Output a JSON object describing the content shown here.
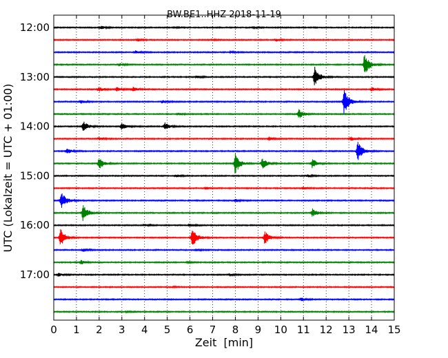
{
  "chart_data": {
    "type": "line",
    "title": "BW.BE1..HHZ 2018-11-19",
    "xlabel": "Zeit  [min]",
    "ylabel": "UTC (Lokalzeit = UTC + 01:00)",
    "xlim": [
      0,
      15
    ],
    "x_ticks": [
      "0",
      "1",
      "2",
      "3",
      "4",
      "5",
      "6",
      "7",
      "8",
      "9",
      "10",
      "11",
      "12",
      "13",
      "14",
      "15"
    ],
    "y_ticks": [
      "12:00",
      "13:00",
      "14:00",
      "15:00",
      "16:00",
      "17:00"
    ],
    "grid": "vertical dotted",
    "trace_colors": [
      "#000000",
      "#ff0000",
      "#0000ff",
      "#008000"
    ],
    "series": [
      {
        "start": "12:00",
        "events": [
          {
            "x": 2.1,
            "amp": 0.12
          },
          {
            "x": 5.3,
            "amp": 0.05
          },
          {
            "x": 8.8,
            "amp": 0.05
          }
        ]
      },
      {
        "start": "12:15",
        "events": [
          {
            "x": 3.7,
            "amp": 0.1
          },
          {
            "x": 7.0,
            "amp": 0.06
          },
          {
            "x": 9.8,
            "amp": 0.1
          }
        ]
      },
      {
        "start": "12:30",
        "events": [
          {
            "x": 3.6,
            "amp": 0.12
          },
          {
            "x": 7.8,
            "amp": 0.05
          }
        ]
      },
      {
        "start": "12:45",
        "events": [
          {
            "x": 2.9,
            "amp": 0.1
          },
          {
            "x": 13.7,
            "amp": 0.95
          }
        ]
      },
      {
        "start": "13:00",
        "events": [
          {
            "x": 6.3,
            "amp": 0.08
          },
          {
            "x": 11.5,
            "amp": 0.9
          }
        ]
      },
      {
        "start": "13:15",
        "events": [
          {
            "x": 2.0,
            "amp": 0.2
          },
          {
            "x": 2.8,
            "amp": 0.18
          },
          {
            "x": 3.5,
            "amp": 0.18
          },
          {
            "x": 14.0,
            "amp": 0.15
          }
        ]
      },
      {
        "start": "13:30",
        "events": [
          {
            "x": 1.2,
            "amp": 0.15
          },
          {
            "x": 4.8,
            "amp": 0.1
          },
          {
            "x": 12.8,
            "amp": 1.15
          }
        ]
      },
      {
        "start": "13:45",
        "events": [
          {
            "x": 5.5,
            "amp": 0.08
          },
          {
            "x": 10.8,
            "amp": 0.4
          }
        ]
      },
      {
        "start": "14:00",
        "events": [
          {
            "x": 1.3,
            "amp": 0.45
          },
          {
            "x": 3.0,
            "amp": 0.3
          },
          {
            "x": 4.9,
            "amp": 0.3
          }
        ]
      },
      {
        "start": "14:15",
        "events": [
          {
            "x": 2.0,
            "amp": 0.1
          },
          {
            "x": 9.5,
            "amp": 0.15
          },
          {
            "x": 13.1,
            "amp": 0.15
          }
        ]
      },
      {
        "start": "14:30",
        "events": [
          {
            "x": 0.6,
            "amp": 0.2
          },
          {
            "x": 13.4,
            "amp": 0.85
          }
        ]
      },
      {
        "start": "14:45",
        "events": [
          {
            "x": 2.0,
            "amp": 0.5
          },
          {
            "x": 8.0,
            "amp": 0.9
          },
          {
            "x": 9.2,
            "amp": 0.45
          },
          {
            "x": 11.4,
            "amp": 0.4
          }
        ]
      },
      {
        "start": "15:00",
        "events": [
          {
            "x": 5.4,
            "amp": 0.1
          },
          {
            "x": 11.2,
            "amp": 0.1
          }
        ]
      },
      {
        "start": "15:15",
        "events": [
          {
            "x": 6.7,
            "amp": 0.08
          },
          {
            "x": 11.0,
            "amp": 0.1
          }
        ]
      },
      {
        "start": "15:30",
        "events": [
          {
            "x": 0.35,
            "amp": 0.75
          },
          {
            "x": 8.0,
            "amp": 0.1
          }
        ]
      },
      {
        "start": "15:45",
        "events": [
          {
            "x": 1.3,
            "amp": 0.75
          },
          {
            "x": 11.4,
            "amp": 0.35
          }
        ]
      },
      {
        "start": "16:00",
        "events": [
          {
            "x": 4.0,
            "amp": 0.1
          },
          {
            "x": 6.0,
            "amp": 0.1
          }
        ]
      },
      {
        "start": "16:15",
        "events": [
          {
            "x": 0.3,
            "amp": 0.75
          },
          {
            "x": 6.1,
            "amp": 0.85
          },
          {
            "x": 9.3,
            "amp": 0.55
          }
        ]
      },
      {
        "start": "16:30",
        "events": [
          {
            "x": 1.3,
            "amp": 0.15
          },
          {
            "x": 6.3,
            "amp": 0.05
          }
        ]
      },
      {
        "start": "16:45",
        "events": [
          {
            "x": 1.2,
            "amp": 0.18
          },
          {
            "x": 5.9,
            "amp": 0.05
          }
        ]
      },
      {
        "start": "17:00",
        "events": [
          {
            "x": 0.2,
            "amp": 0.15
          },
          {
            "x": 7.8,
            "amp": 0.06
          }
        ]
      },
      {
        "start": "17:15",
        "events": [
          {
            "x": 5.3,
            "amp": 0.03
          }
        ]
      },
      {
        "start": "17:30",
        "events": [
          {
            "x": 10.9,
            "amp": 0.15
          }
        ]
      },
      {
        "start": "17:45",
        "events": [
          {
            "x": 3.2,
            "amp": 0.04
          }
        ]
      }
    ]
  }
}
